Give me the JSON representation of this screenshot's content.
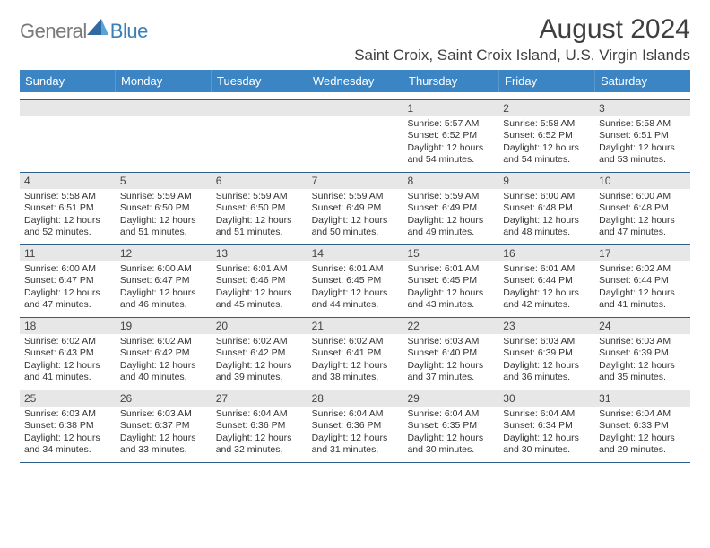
{
  "logo": {
    "text_general": "General",
    "text_blue": "Blue",
    "gray": "#7a7a7a",
    "blue": "#3a7fb8"
  },
  "title": "August 2024",
  "location": "Saint Croix, Saint Croix Island, U.S. Virgin Islands",
  "colors": {
    "header_bg": "#3b85c4",
    "header_text": "#ffffff",
    "row_divider": "#2f5e88",
    "daynum_bg": "#e7e7e7",
    "text": "#333333",
    "page_bg": "#ffffff"
  },
  "day_names": [
    "Sunday",
    "Monday",
    "Tuesday",
    "Wednesday",
    "Thursday",
    "Friday",
    "Saturday"
  ],
  "weeks": [
    [
      {
        "day": "",
        "sunrise": "",
        "sunset": "",
        "daylight": ""
      },
      {
        "day": "",
        "sunrise": "",
        "sunset": "",
        "daylight": ""
      },
      {
        "day": "",
        "sunrise": "",
        "sunset": "",
        "daylight": ""
      },
      {
        "day": "",
        "sunrise": "",
        "sunset": "",
        "daylight": ""
      },
      {
        "day": "1",
        "sunrise": "Sunrise: 5:57 AM",
        "sunset": "Sunset: 6:52 PM",
        "daylight": "Daylight: 12 hours and 54 minutes."
      },
      {
        "day": "2",
        "sunrise": "Sunrise: 5:58 AM",
        "sunset": "Sunset: 6:52 PM",
        "daylight": "Daylight: 12 hours and 54 minutes."
      },
      {
        "day": "3",
        "sunrise": "Sunrise: 5:58 AM",
        "sunset": "Sunset: 6:51 PM",
        "daylight": "Daylight: 12 hours and 53 minutes."
      }
    ],
    [
      {
        "day": "4",
        "sunrise": "Sunrise: 5:58 AM",
        "sunset": "Sunset: 6:51 PM",
        "daylight": "Daylight: 12 hours and 52 minutes."
      },
      {
        "day": "5",
        "sunrise": "Sunrise: 5:59 AM",
        "sunset": "Sunset: 6:50 PM",
        "daylight": "Daylight: 12 hours and 51 minutes."
      },
      {
        "day": "6",
        "sunrise": "Sunrise: 5:59 AM",
        "sunset": "Sunset: 6:50 PM",
        "daylight": "Daylight: 12 hours and 51 minutes."
      },
      {
        "day": "7",
        "sunrise": "Sunrise: 5:59 AM",
        "sunset": "Sunset: 6:49 PM",
        "daylight": "Daylight: 12 hours and 50 minutes."
      },
      {
        "day": "8",
        "sunrise": "Sunrise: 5:59 AM",
        "sunset": "Sunset: 6:49 PM",
        "daylight": "Daylight: 12 hours and 49 minutes."
      },
      {
        "day": "9",
        "sunrise": "Sunrise: 6:00 AM",
        "sunset": "Sunset: 6:48 PM",
        "daylight": "Daylight: 12 hours and 48 minutes."
      },
      {
        "day": "10",
        "sunrise": "Sunrise: 6:00 AM",
        "sunset": "Sunset: 6:48 PM",
        "daylight": "Daylight: 12 hours and 47 minutes."
      }
    ],
    [
      {
        "day": "11",
        "sunrise": "Sunrise: 6:00 AM",
        "sunset": "Sunset: 6:47 PM",
        "daylight": "Daylight: 12 hours and 47 minutes."
      },
      {
        "day": "12",
        "sunrise": "Sunrise: 6:00 AM",
        "sunset": "Sunset: 6:47 PM",
        "daylight": "Daylight: 12 hours and 46 minutes."
      },
      {
        "day": "13",
        "sunrise": "Sunrise: 6:01 AM",
        "sunset": "Sunset: 6:46 PM",
        "daylight": "Daylight: 12 hours and 45 minutes."
      },
      {
        "day": "14",
        "sunrise": "Sunrise: 6:01 AM",
        "sunset": "Sunset: 6:45 PM",
        "daylight": "Daylight: 12 hours and 44 minutes."
      },
      {
        "day": "15",
        "sunrise": "Sunrise: 6:01 AM",
        "sunset": "Sunset: 6:45 PM",
        "daylight": "Daylight: 12 hours and 43 minutes."
      },
      {
        "day": "16",
        "sunrise": "Sunrise: 6:01 AM",
        "sunset": "Sunset: 6:44 PM",
        "daylight": "Daylight: 12 hours and 42 minutes."
      },
      {
        "day": "17",
        "sunrise": "Sunrise: 6:02 AM",
        "sunset": "Sunset: 6:44 PM",
        "daylight": "Daylight: 12 hours and 41 minutes."
      }
    ],
    [
      {
        "day": "18",
        "sunrise": "Sunrise: 6:02 AM",
        "sunset": "Sunset: 6:43 PM",
        "daylight": "Daylight: 12 hours and 41 minutes."
      },
      {
        "day": "19",
        "sunrise": "Sunrise: 6:02 AM",
        "sunset": "Sunset: 6:42 PM",
        "daylight": "Daylight: 12 hours and 40 minutes."
      },
      {
        "day": "20",
        "sunrise": "Sunrise: 6:02 AM",
        "sunset": "Sunset: 6:42 PM",
        "daylight": "Daylight: 12 hours and 39 minutes."
      },
      {
        "day": "21",
        "sunrise": "Sunrise: 6:02 AM",
        "sunset": "Sunset: 6:41 PM",
        "daylight": "Daylight: 12 hours and 38 minutes."
      },
      {
        "day": "22",
        "sunrise": "Sunrise: 6:03 AM",
        "sunset": "Sunset: 6:40 PM",
        "daylight": "Daylight: 12 hours and 37 minutes."
      },
      {
        "day": "23",
        "sunrise": "Sunrise: 6:03 AM",
        "sunset": "Sunset: 6:39 PM",
        "daylight": "Daylight: 12 hours and 36 minutes."
      },
      {
        "day": "24",
        "sunrise": "Sunrise: 6:03 AM",
        "sunset": "Sunset: 6:39 PM",
        "daylight": "Daylight: 12 hours and 35 minutes."
      }
    ],
    [
      {
        "day": "25",
        "sunrise": "Sunrise: 6:03 AM",
        "sunset": "Sunset: 6:38 PM",
        "daylight": "Daylight: 12 hours and 34 minutes."
      },
      {
        "day": "26",
        "sunrise": "Sunrise: 6:03 AM",
        "sunset": "Sunset: 6:37 PM",
        "daylight": "Daylight: 12 hours and 33 minutes."
      },
      {
        "day": "27",
        "sunrise": "Sunrise: 6:04 AM",
        "sunset": "Sunset: 6:36 PM",
        "daylight": "Daylight: 12 hours and 32 minutes."
      },
      {
        "day": "28",
        "sunrise": "Sunrise: 6:04 AM",
        "sunset": "Sunset: 6:36 PM",
        "daylight": "Daylight: 12 hours and 31 minutes."
      },
      {
        "day": "29",
        "sunrise": "Sunrise: 6:04 AM",
        "sunset": "Sunset: 6:35 PM",
        "daylight": "Daylight: 12 hours and 30 minutes."
      },
      {
        "day": "30",
        "sunrise": "Sunrise: 6:04 AM",
        "sunset": "Sunset: 6:34 PM",
        "daylight": "Daylight: 12 hours and 30 minutes."
      },
      {
        "day": "31",
        "sunrise": "Sunrise: 6:04 AM",
        "sunset": "Sunset: 6:33 PM",
        "daylight": "Daylight: 12 hours and 29 minutes."
      }
    ]
  ]
}
